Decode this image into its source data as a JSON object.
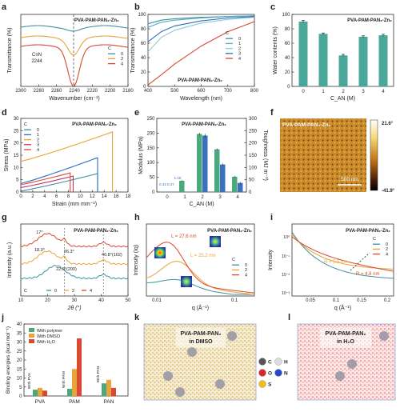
{
  "chart_data": [
    {
      "panel": "a",
      "type": "line",
      "xlabel": "Wavenumber (cm⁻¹)",
      "ylabel": "Transmittance (%)",
      "title": "PVA-PAM-PAN₂-Zn₂",
      "xlim": [
        2300,
        2180
      ],
      "xticks": [
        2300,
        2280,
        2260,
        2240,
        2220,
        2200,
        2180
      ],
      "annotation": "C≡N 2244",
      "legend_title": "C_AN (M)",
      "series": [
        {
          "name": "0",
          "color": "#3f8fa3",
          "dip": 0.05
        },
        {
          "name": "2",
          "color": "#e8a33a",
          "dip": 0.45
        },
        {
          "name": "4",
          "color": "#d9482f",
          "dip": 0.8
        }
      ]
    },
    {
      "panel": "b",
      "type": "line",
      "xlabel": "Wavelength (nm)",
      "ylabel": "Transmittance (%)",
      "title": "PVA-PAM-PAN₂-Zn₂",
      "xlim": [
        400,
        800
      ],
      "ylim": [
        0,
        100
      ],
      "xticks": [
        400,
        500,
        600,
        700,
        800
      ],
      "yticks": [
        0,
        20,
        40,
        60,
        80,
        100
      ],
      "legend_title": "C_AN (M)",
      "series": [
        {
          "name": "0",
          "color": "#3f8fa3",
          "x": [
            400,
            450,
            500,
            600,
            700,
            800
          ],
          "y": [
            87,
            92,
            94,
            96,
            97,
            98
          ]
        },
        {
          "name": "1",
          "color": "#5aa9be",
          "x": [
            400,
            450,
            500,
            600,
            700,
            800
          ],
          "y": [
            82,
            89,
            92,
            95,
            97,
            98
          ]
        },
        {
          "name": "2",
          "color": "#8fc9d6",
          "x": [
            400,
            450,
            500,
            600,
            700,
            800
          ],
          "y": [
            48,
            68,
            78,
            88,
            93,
            96
          ]
        },
        {
          "name": "3",
          "color": "#2c6fbf",
          "x": [
            400,
            450,
            500,
            600,
            700,
            800
          ],
          "y": [
            62,
            76,
            84,
            91,
            95,
            97
          ]
        },
        {
          "name": "4",
          "color": "#d9482f",
          "x": [
            400,
            450,
            500,
            600,
            700,
            800
          ],
          "y": [
            2,
            16,
            31,
            56,
            76,
            90
          ]
        }
      ]
    },
    {
      "panel": "c",
      "type": "bar",
      "xlabel": "C_AN (M)",
      "ylabel": "Water contents (%)",
      "title": "PVA-PAM-PAN₂-Zn₂",
      "categories": [
        "0",
        "1",
        "2",
        "3",
        "4"
      ],
      "values": [
        90,
        73,
        43,
        69,
        71
      ],
      "errors": [
        1.5,
        1.2,
        1.5,
        1.2,
        1.4
      ],
      "ylim": [
        0,
        100
      ],
      "yticks": [
        0,
        20,
        40,
        60,
        80,
        100
      ]
    },
    {
      "panel": "d",
      "type": "line",
      "xlabel": "Strain (mm mm⁻¹)",
      "ylabel": "Stress (MPa)",
      "title": "PVA-PAM-PAN₂-Zn₂",
      "xlim": [
        0,
        18
      ],
      "ylim": [
        0,
        30
      ],
      "xticks": [
        0,
        2,
        4,
        6,
        8,
        10,
        12,
        14,
        16,
        18
      ],
      "yticks": [
        0,
        5,
        10,
        15,
        20,
        25,
        30
      ],
      "legend_title": "C_AN (M)",
      "series": [
        {
          "name": "0",
          "color": "#3f8fa3",
          "break_x": 12.9,
          "y_start": 0.4,
          "y_end": 7.5,
          "drop": 7.5
        },
        {
          "name": "1",
          "color": "#2c6fbf",
          "break_x": 12.9,
          "y_start": 3.5,
          "y_end": 14.0,
          "drop": 14.0
        },
        {
          "name": "2",
          "color": "#e8a33a",
          "break_x": 15.4,
          "y_start": 12.5,
          "y_end": 24.5,
          "drop": 24.5
        },
        {
          "name": "3",
          "color": "#c7326f",
          "break_x": 8.8,
          "y_start": 1.8,
          "y_end": 6.5,
          "drop": 6.5
        },
        {
          "name": "4",
          "color": "#d9482f",
          "break_x": 8.3,
          "y_start": 3.0,
          "y_end": 7.8,
          "drop": 7.8
        }
      ]
    },
    {
      "panel": "e",
      "type": "bar",
      "xlabel": "C_AN (M)",
      "ylabel": "Modulus (MPa)",
      "ylabel_right": "Toughness (MJ m⁻³)",
      "title": "PVA-PAM-PAN₂-Zn₂",
      "categories": [
        "0",
        "1",
        "2",
        "3",
        "4"
      ],
      "ylim": [
        0,
        250
      ],
      "yticks": [
        0,
        50,
        100,
        150,
        200,
        250
      ],
      "yticks_right": [
        0,
        50,
        100,
        150,
        200,
        250,
        300
      ],
      "series": [
        {
          "name": "Modulus",
          "color": "#4aa87a",
          "values": [
            0.44,
            38,
            197,
            145,
            52
          ],
          "errors": [
            0.05,
            2,
            4,
            3,
            2
          ]
        },
        {
          "name": "Toughness",
          "color": "#3b6fbf",
          "values": [
            0.47,
            1.18,
            230,
            112,
            37
          ],
          "errors": [
            0.05,
            0.1,
            6,
            4,
            3
          ]
        }
      ],
      "labels": [
        "0.44",
        "0.47",
        "1.18"
      ]
    },
    {
      "panel": "f",
      "type": "heatmap",
      "title": "PVA-PAM-PAN₂-Zn₂",
      "scale_bar": "500 nm",
      "colorbar_max": "21.6°",
      "colorbar_min": "-41.9°"
    },
    {
      "panel": "g",
      "type": "line",
      "xlabel": "2θ (°)",
      "ylabel": "Intensity (a.u.)",
      "title": "PVA-PAM-PAN₂-Zn₂",
      "xlim": [
        10,
        50
      ],
      "xticks": [
        10,
        20,
        30,
        40,
        50
      ],
      "legend_title": "C_AN (M)",
      "annotations": [
        "17°",
        "18.3°",
        "26.3°",
        "40.8°(102)",
        "22.9°(200)"
      ],
      "series": [
        {
          "name": "0",
          "color": "#3f8fa3"
        },
        {
          "name": "2",
          "color": "#e8a33a"
        },
        {
          "name": "4",
          "color": "#d9482f"
        }
      ]
    },
    {
      "panel": "h",
      "type": "line",
      "xlabel": "q (Å⁻¹)",
      "ylabel": "Intensity (Iq)",
      "title": "PVA-PAM-PAN₂-Zn₂",
      "xticks": [
        "0.01",
        "0.1"
      ],
      "legend_title": "C_AN (M)",
      "annotations": [
        "L = 27.6 nm",
        "L = 25.2 nm"
      ],
      "series": [
        {
          "name": "0",
          "color": "#3f8fa3"
        },
        {
          "name": "2",
          "color": "#e8a33a"
        },
        {
          "name": "4",
          "color": "#d9482f"
        }
      ]
    },
    {
      "panel": "i",
      "type": "line",
      "xlabel": "q (Å⁻¹)",
      "ylabel": "Intensity",
      "title": "PVA-PAM-PAN₂-Zn₂",
      "xticks": [
        "0.05",
        "0.1",
        "0.15",
        "0.2"
      ],
      "yticks": [
        "10⁻³",
        "10⁻²",
        "10⁻¹",
        "10⁰"
      ],
      "legend_title": "C_AN (M)",
      "annotations": [
        "R = 5.5 nm",
        "R = 4.8 nm"
      ],
      "series": [
        {
          "name": "0",
          "color": "#3f8fa3"
        },
        {
          "name": "2",
          "color": "#e8a33a"
        },
        {
          "name": "4",
          "color": "#d9482f"
        }
      ]
    },
    {
      "panel": "j",
      "type": "bar",
      "ylabel": "Binding energies (kcal mol⁻¹)",
      "categories": [
        "PVA",
        "PAM",
        "PAN"
      ],
      "ylim": [
        0,
        40
      ],
      "yticks": [
        0,
        5,
        10,
        15,
        20,
        25,
        30,
        35,
        40
      ],
      "group_labels": [
        "With PVA",
        "With PAM",
        "With PAN"
      ],
      "series": [
        {
          "name": "With polymer",
          "color": "#4aa87a",
          "values": [
            3.5,
            4.0,
            7.0
          ]
        },
        {
          "name": "With DMSO",
          "color": "#e8a33a",
          "values": [
            4.5,
            15.0,
            9.0
          ]
        },
        {
          "name": "With H₂O",
          "color": "#d9482f",
          "values": [
            3.0,
            32.0,
            4.5
          ]
        }
      ]
    },
    {
      "panel": "k",
      "type": "other",
      "title_line1": "PVA-PAM-PAN₂",
      "title_line2": "in DMSO",
      "atoms": [
        {
          "sym": "C",
          "color": "#555555"
        },
        {
          "sym": "H",
          "color": "#dddddd"
        },
        {
          "sym": "O",
          "color": "#d9262b"
        },
        {
          "sym": "N",
          "color": "#2a49c9"
        },
        {
          "sym": "S",
          "color": "#e8c21a"
        }
      ]
    },
    {
      "panel": "l",
      "type": "other",
      "title_line1": "PVA-PAM-PAN₂",
      "title_line2": "in H₂O"
    }
  ],
  "panel_letters": [
    "a",
    "b",
    "c",
    "d",
    "e",
    "f",
    "g",
    "h",
    "i",
    "j",
    "k",
    "l"
  ]
}
